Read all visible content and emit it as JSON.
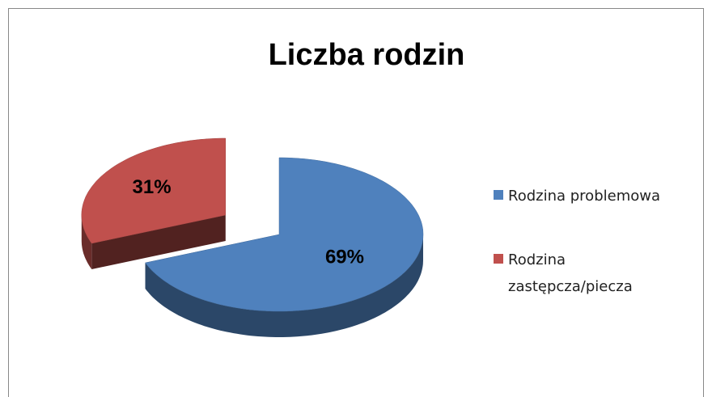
{
  "chart_data": {
    "type": "pie",
    "title": "Liczba rodzin",
    "categories": [
      "Rodzina problemowa",
      "Rodzina zastępcza/piecza"
    ],
    "values": [
      69,
      31
    ],
    "value_labels": [
      "69%",
      "31%"
    ],
    "colors": [
      "#4f81bd",
      "#c0504d"
    ],
    "legend": "right"
  }
}
